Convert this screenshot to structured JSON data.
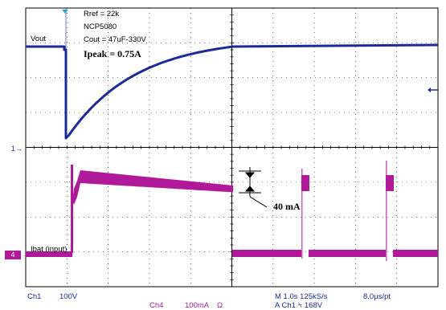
{
  "annotations": {
    "rref": "Rref = 22k",
    "part": "NCP5080",
    "cout": "Cout = 47uF-330V",
    "ipeak": "Ipeak = 0.75A",
    "delta_current": "40 mA"
  },
  "traces": {
    "vout_label": "Vout",
    "ibat_label": "Ibat (input)",
    "ch1_marker": "1",
    "ch4_marker": "4"
  },
  "status": {
    "ch1_name": "Ch1",
    "ch1_scale": "100V",
    "ch4_name": "Ch4",
    "ch4_scale": "100mA",
    "ch4_unit_symbol": "Ω",
    "timebase": "M 1.0s",
    "sample_rate": "125kS/s",
    "record": "8.0µs/pt",
    "trigger_prefix": "A",
    "trigger_source": "Ch1",
    "trigger_slope_symbol": "⍀",
    "trigger_level": "168V"
  },
  "colors": {
    "channel1": "#1a2a9a",
    "channel4": "#b01a9a",
    "grid": "#000000"
  },
  "icons": {
    "trigger_position": "trigger-position-icon",
    "trigger_level": "trigger-level-arrow-icon",
    "ch1_ground": "ch1-ground-marker-icon",
    "ch4_ground": "ch4-ground-marker-icon"
  }
}
